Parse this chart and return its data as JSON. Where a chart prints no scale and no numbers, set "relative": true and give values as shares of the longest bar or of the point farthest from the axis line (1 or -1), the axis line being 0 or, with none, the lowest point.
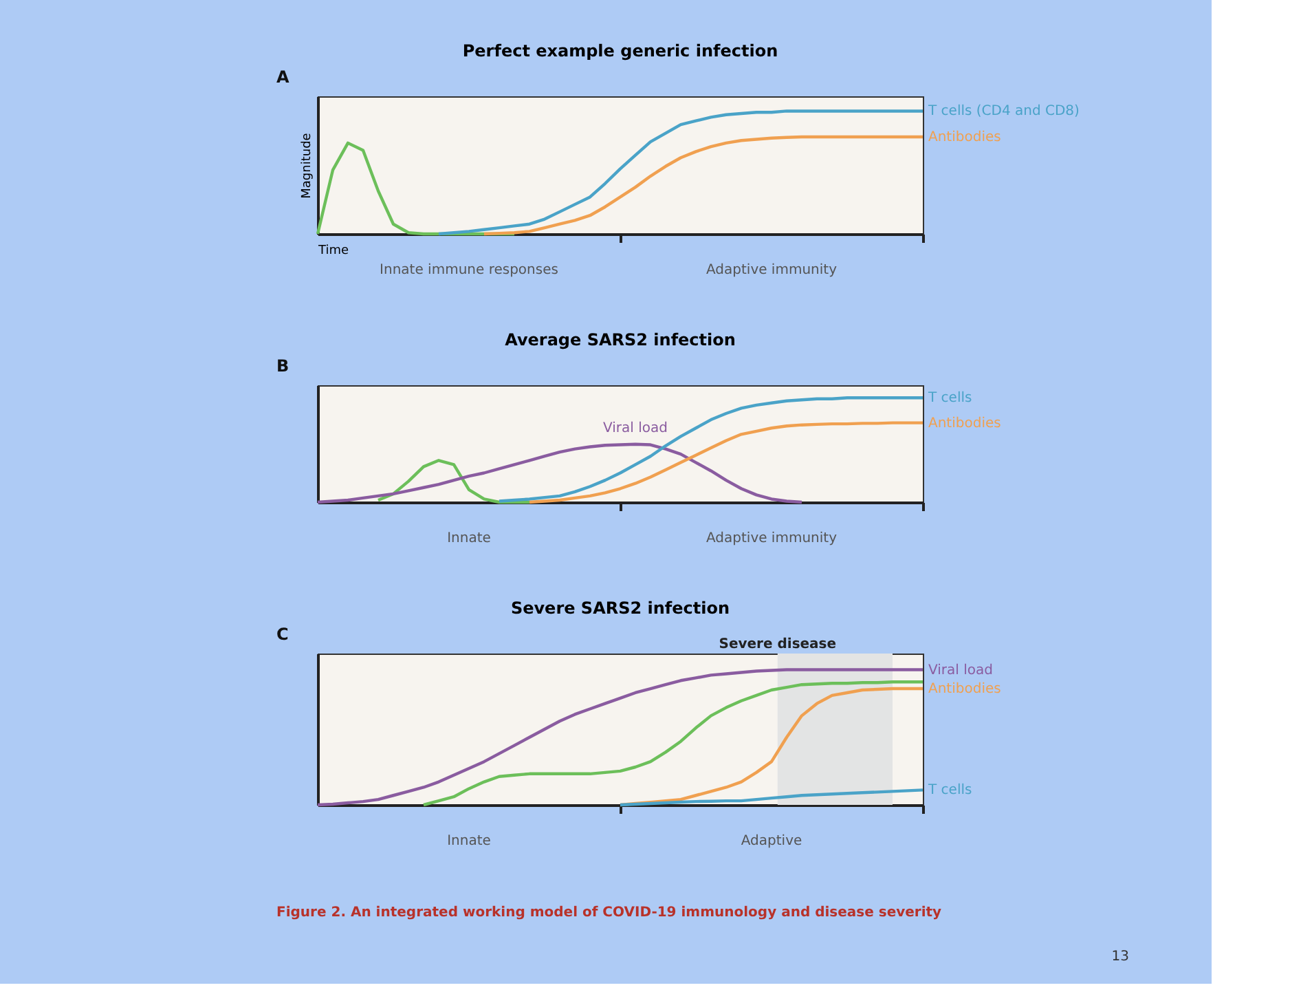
{
  "chart_data": [
    {
      "type": "line",
      "relative": true,
      "title": "Perfect example generic infection",
      "xlabel": "Time",
      "ylabel": "Magnitude",
      "line_style": "solid",
      "categories": [
        null,
        null,
        null,
        null,
        null,
        null,
        null,
        null,
        null,
        null,
        null,
        null,
        null,
        null,
        null,
        null,
        null,
        null,
        null,
        null,
        null,
        null,
        null,
        null,
        null,
        null,
        null,
        null,
        null,
        null,
        null,
        null,
        null,
        null,
        null,
        null,
        null,
        null,
        null,
        null,
        null
      ],
      "series": [
        {
          "color": "#6cbf5a",
          "values": [
            0,
            0.52,
            0.74,
            0.68,
            0.35,
            0.08,
            0.01,
            0,
            0,
            0,
            0,
            0,
            0,
            0,
            null,
            null,
            null,
            null,
            null,
            null,
            null,
            null,
            null,
            null,
            null,
            null,
            null,
            null,
            null,
            null,
            null,
            null,
            null,
            null,
            null,
            null,
            null,
            null,
            null,
            null,
            null
          ]
        },
        {
          "name": "T cells (CD4 and CD8)",
          "color": "#4aa3c8",
          "values": [
            null,
            null,
            null,
            null,
            null,
            null,
            null,
            null,
            0,
            0.01,
            0.02,
            0.035,
            0.05,
            0.065,
            0.08,
            0.12,
            0.18,
            0.24,
            0.3,
            0.41,
            0.53,
            0.64,
            0.75,
            0.82,
            0.89,
            0.92,
            0.95,
            0.97,
            0.98,
            0.99,
            0.99,
            1,
            1,
            1,
            1,
            1,
            1,
            1,
            1,
            1,
            1
          ]
        },
        {
          "name": "Antibodies",
          "color": "#f0a050",
          "values": [
            null,
            null,
            null,
            null,
            null,
            null,
            null,
            null,
            null,
            null,
            null,
            0,
            0.005,
            0.01,
            0.02,
            0.05,
            0.08,
            0.11,
            0.15,
            0.22,
            0.3,
            0.38,
            0.47,
            0.55,
            0.62,
            0.67,
            0.71,
            0.74,
            0.76,
            0.77,
            0.78,
            0.785,
            0.79,
            0.79,
            0.79,
            0.79,
            0.79,
            0.79,
            0.79,
            0.79,
            0.79
          ]
        }
      ],
      "annotations": [
        "A",
        "Innate immune responses",
        "Adaptive immunity"
      ]
    },
    {
      "type": "line",
      "relative": true,
      "title": "Average SARS2 infection",
      "line_style": "solid",
      "categories": [
        null,
        null,
        null,
        null,
        null,
        null,
        null,
        null,
        null,
        null,
        null,
        null,
        null,
        null,
        null,
        null,
        null,
        null,
        null,
        null,
        null,
        null,
        null,
        null,
        null,
        null,
        null,
        null,
        null,
        null,
        null,
        null,
        null,
        null,
        null,
        null,
        null,
        null,
        null,
        null,
        null
      ],
      "series": [
        {
          "color": "#6cbf5a",
          "values": [
            null,
            null,
            null,
            null,
            0.02,
            0.08,
            0.2,
            0.34,
            0.4,
            0.36,
            0.12,
            0.03,
            0,
            0,
            0,
            null,
            null,
            null,
            null,
            null,
            null,
            null,
            null,
            null,
            null,
            null,
            null,
            null,
            null,
            null,
            null,
            null,
            null,
            null,
            null,
            null,
            null,
            null,
            null,
            null,
            null
          ]
        },
        {
          "name": "Viral load",
          "color": "#8a5ca0",
          "values": [
            0,
            0.01,
            0.02,
            0.04,
            0.06,
            0.08,
            0.11,
            0.14,
            0.17,
            0.21,
            0.25,
            0.28,
            0.32,
            0.36,
            0.4,
            0.44,
            0.48,
            0.51,
            0.53,
            0.545,
            0.55,
            0.555,
            0.55,
            0.51,
            0.46,
            0.38,
            0.3,
            0.21,
            0.13,
            0.07,
            0.03,
            0.01,
            0,
            null,
            null,
            null,
            null,
            null,
            null,
            null,
            null
          ]
        },
        {
          "name": "T cells",
          "color": "#4aa3c8",
          "values": [
            null,
            null,
            null,
            null,
            null,
            null,
            null,
            null,
            null,
            null,
            null,
            null,
            0.01,
            0.02,
            0.03,
            0.045,
            0.06,
            0.1,
            0.15,
            0.21,
            0.28,
            0.36,
            0.44,
            0.54,
            0.63,
            0.71,
            0.79,
            0.85,
            0.9,
            0.93,
            0.95,
            0.97,
            0.98,
            0.99,
            0.99,
            1,
            1,
            1,
            1,
            1,
            1
          ]
        },
        {
          "name": "Antibodies",
          "color": "#f0a050",
          "values": [
            null,
            null,
            null,
            null,
            null,
            null,
            null,
            null,
            null,
            null,
            null,
            null,
            null,
            null,
            0,
            0.01,
            0.02,
            0.04,
            0.06,
            0.09,
            0.13,
            0.18,
            0.24,
            0.31,
            0.38,
            0.45,
            0.52,
            0.59,
            0.65,
            0.68,
            0.71,
            0.73,
            0.74,
            0.745,
            0.75,
            0.75,
            0.755,
            0.755,
            0.76,
            0.76,
            0.76
          ]
        }
      ],
      "annotations": [
        "B",
        "Innate",
        "Adaptive immunity"
      ]
    },
    {
      "type": "line",
      "relative": true,
      "title": "Severe SARS2 infection",
      "categories": [
        null,
        null,
        null,
        null,
        null,
        null,
        null,
        null,
        null,
        null,
        null,
        null,
        null,
        null,
        null,
        null,
        null,
        null,
        null,
        null,
        null,
        null,
        null,
        null,
        null,
        null,
        null,
        null,
        null,
        null,
        null,
        null,
        null,
        null,
        null,
        null,
        null,
        null,
        null,
        null,
        null
      ],
      "line_style": "solid",
      "series": [
        {
          "name": "Viral load",
          "color": "#8a5ca0",
          "values": [
            0,
            0.005,
            0.015,
            0.025,
            0.04,
            0.07,
            0.1,
            0.13,
            0.17,
            0.22,
            0.27,
            0.32,
            0.38,
            0.44,
            0.5,
            0.56,
            0.62,
            0.67,
            0.71,
            0.75,
            0.79,
            0.83,
            0.86,
            0.89,
            0.92,
            0.94,
            0.96,
            0.97,
            0.98,
            0.99,
            0.995,
            1,
            1,
            1,
            1,
            1,
            1,
            1,
            1,
            1,
            1
          ]
        },
        {
          "color": "#6cbf5a",
          "values": [
            null,
            null,
            null,
            null,
            null,
            null,
            null,
            0,
            0.03,
            0.06,
            0.12,
            0.17,
            0.21,
            0.22,
            0.23,
            0.23,
            0.23,
            0.23,
            0.23,
            0.24,
            0.25,
            0.28,
            0.32,
            0.39,
            0.47,
            0.57,
            0.66,
            0.72,
            0.77,
            0.81,
            0.85,
            0.87,
            0.89,
            0.895,
            0.9,
            0.9,
            0.905,
            0.905,
            0.91,
            0.91,
            0.91
          ]
        },
        {
          "name": "Antibodies",
          "color": "#f0a050",
          "values": [
            null,
            null,
            null,
            null,
            null,
            null,
            null,
            null,
            null,
            null,
            null,
            null,
            null,
            null,
            null,
            null,
            null,
            null,
            null,
            null,
            0,
            0.01,
            0.02,
            0.03,
            0.04,
            0.07,
            0.1,
            0.13,
            0.17,
            0.24,
            0.32,
            0.5,
            0.66,
            0.75,
            0.81,
            0.83,
            0.85,
            0.855,
            0.86,
            0.86,
            0.86
          ]
        },
        {
          "name": "T cells",
          "color": "#4aa3c8",
          "values": [
            null,
            null,
            null,
            null,
            null,
            null,
            null,
            null,
            null,
            null,
            null,
            null,
            null,
            null,
            null,
            null,
            null,
            null,
            null,
            null,
            0,
            0.005,
            0.01,
            0.015,
            0.02,
            0.025,
            0.027,
            0.03,
            0.03,
            0.04,
            0.05,
            0.06,
            0.07,
            0.075,
            0.08,
            0.085,
            0.09,
            0.095,
            0.1,
            0.105,
            0.11
          ]
        }
      ],
      "annotations": [
        "C",
        "Innate",
        "Adaptive",
        "Severe disease"
      ]
    },
    {
      "type": "other",
      "annotations": [
        "Figure 2. An integrated working model of COVID-19 immunology and disease severity",
        "13"
      ]
    }
  ]
}
